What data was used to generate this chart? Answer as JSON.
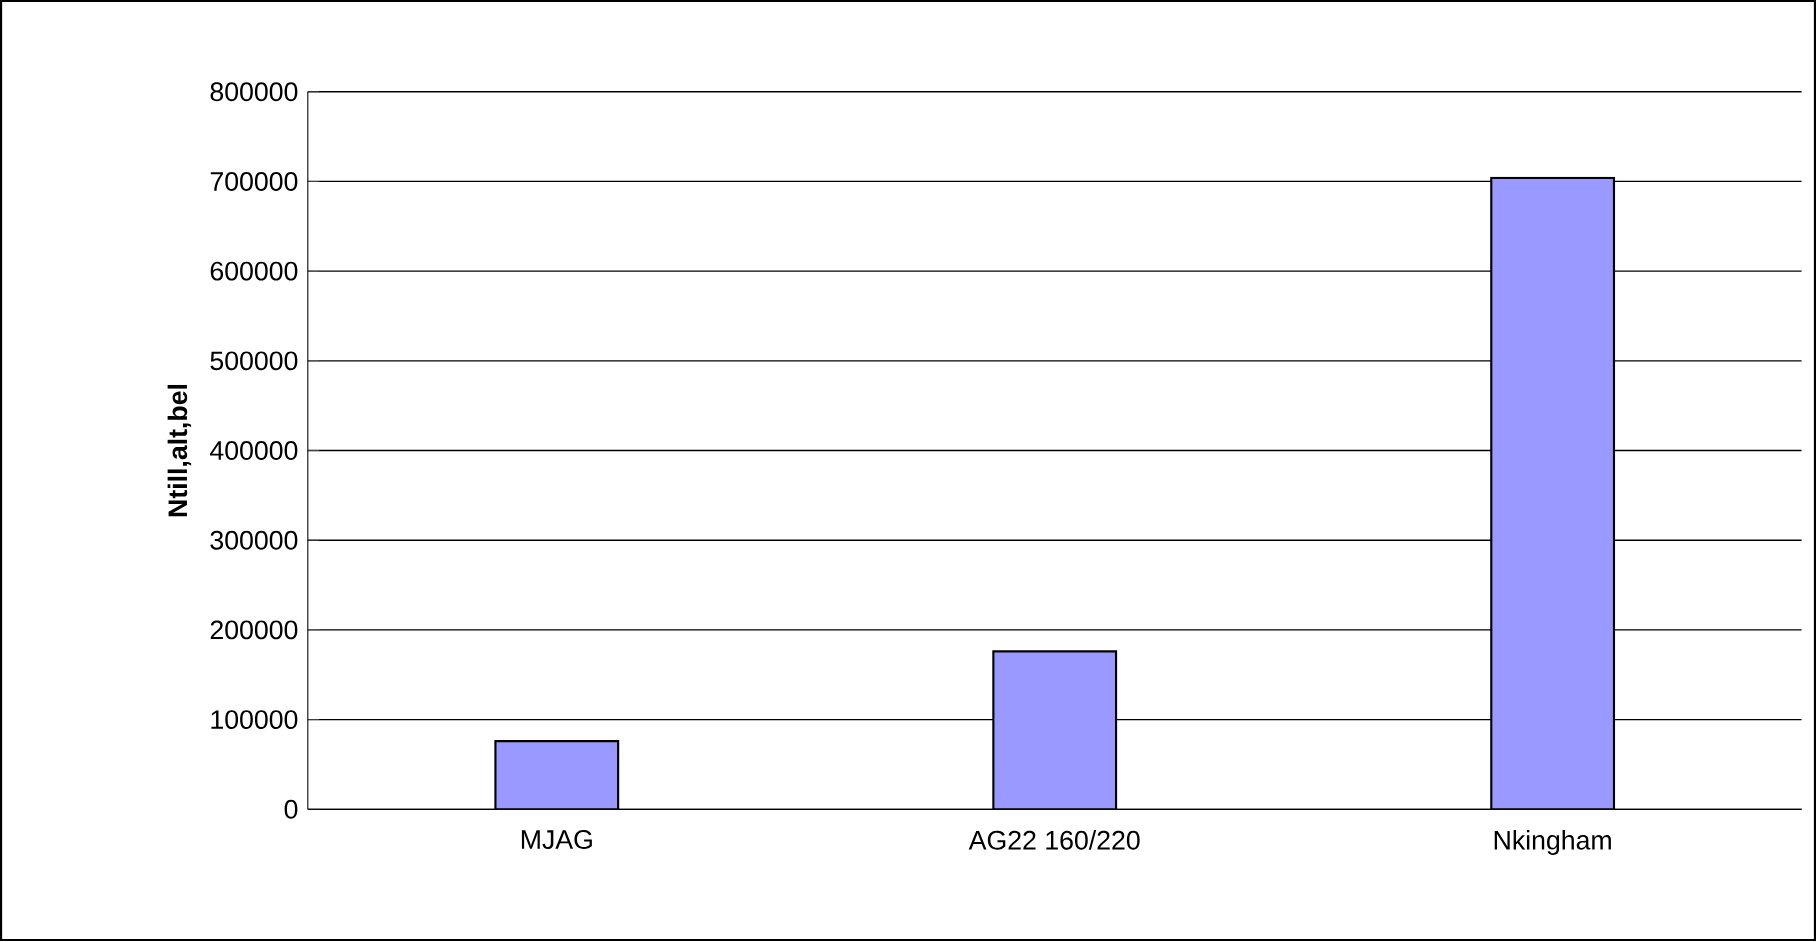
{
  "chart_data": {
    "type": "bar",
    "ylabel": "Ntill,alt,bel",
    "categories": [
      "MJAG",
      "AG22 160/220",
      "Nkingham"
    ],
    "values": [
      76000,
      176000,
      704000
    ],
    "color": "#9999ff",
    "ylim": [
      0,
      800000
    ],
    "yticks": [
      0,
      100000,
      200000,
      300000,
      400000,
      500000,
      600000,
      700000,
      800000
    ],
    "grid": "y"
  }
}
